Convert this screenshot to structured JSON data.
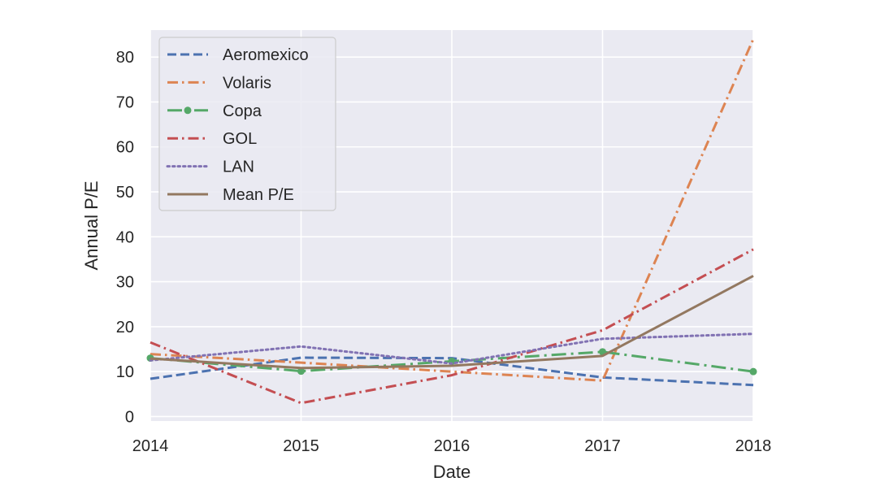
{
  "chart_data": {
    "type": "line",
    "title": "",
    "xlabel": "Date",
    "ylabel": "Annual P/E",
    "x": [
      "2014",
      "2015",
      "2016",
      "2017",
      "2018"
    ],
    "xlim": [
      "2014",
      "2018"
    ],
    "ylim": [
      -1,
      86
    ],
    "yticks": [
      0,
      10,
      20,
      30,
      40,
      50,
      60,
      70,
      80
    ],
    "grid": true,
    "legend_position": "upper left",
    "series": [
      {
        "name": "Aeromexico",
        "values": [
          8.4,
          13.1,
          13.0,
          8.7,
          7.0
        ],
        "color": "#4c72b0",
        "style": "dashed",
        "marker": "none"
      },
      {
        "name": "Volaris",
        "values": [
          13.9,
          12.0,
          10.0,
          8.0,
          84.0
        ],
        "color": "#dd8452",
        "style": "dashdot",
        "marker": "none"
      },
      {
        "name": "Copa",
        "values": [
          13.0,
          10.1,
          12.3,
          14.4,
          10.0
        ],
        "color": "#55a868",
        "style": "dashdot-long",
        "marker": "dot"
      },
      {
        "name": "GOL",
        "values": [
          16.5,
          3.0,
          9.2,
          19.2,
          37.2
        ],
        "color": "#c44e52",
        "style": "dashdot",
        "marker": "none"
      },
      {
        "name": "LAN",
        "values": [
          12.5,
          15.6,
          11.8,
          17.3,
          18.4
        ],
        "color": "#8172b3",
        "style": "dotted",
        "marker": "none"
      },
      {
        "name": "Mean P/E",
        "values": [
          12.9,
          10.8,
          11.3,
          13.5,
          31.3
        ],
        "color": "#937860",
        "style": "solid",
        "marker": "none"
      }
    ],
    "colors": {
      "background": "#eaeaf2",
      "grid": "#ffffff",
      "legend_bg": "#eaeaf2",
      "legend_border": "#cccccc"
    }
  }
}
